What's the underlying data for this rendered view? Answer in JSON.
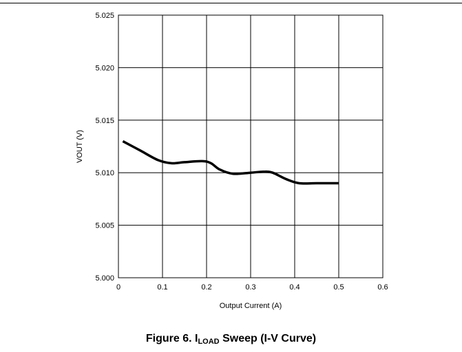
{
  "chart_data": {
    "type": "line",
    "xlabel": "Output Current (A)",
    "ylabel": "VOUT (V)",
    "xlim": [
      0,
      0.6
    ],
    "ylim": [
      5.0,
      5.025
    ],
    "x_ticks": [
      "0",
      "0.1",
      "0.2",
      "0.3",
      "0.4",
      "0.5",
      "0.6"
    ],
    "y_ticks": [
      "5.000",
      "5.005",
      "5.010",
      "5.015",
      "5.020",
      "5.025"
    ],
    "grid": true,
    "series": [
      {
        "x": [
          0.01,
          0.05,
          0.09,
          0.12,
          0.15,
          0.19,
          0.21,
          0.23,
          0.26,
          0.3,
          0.33,
          0.35,
          0.38,
          0.41,
          0.45,
          0.5
        ],
        "y": [
          5.013,
          5.0121,
          5.0112,
          5.0109,
          5.011,
          5.0111,
          5.0109,
          5.0103,
          5.0099,
          5.01,
          5.0101,
          5.01,
          5.0094,
          5.009,
          5.009,
          5.009
        ]
      }
    ]
  },
  "caption": {
    "prefix": "Figure 6. I",
    "subscript": "LOAD",
    "suffix": " Sweep (I-V Curve)"
  }
}
